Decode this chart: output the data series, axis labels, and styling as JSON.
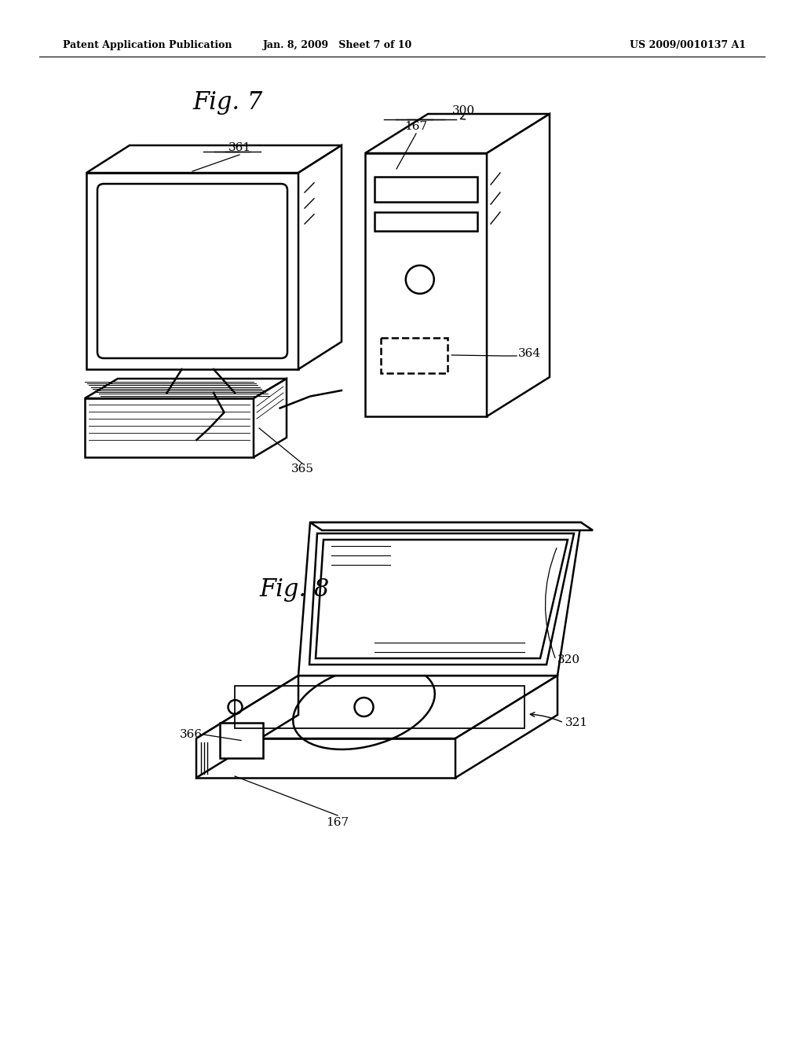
{
  "background_color": "#ffffff",
  "header_left": "Patent Application Publication",
  "header_center": "Jan. 8, 2009   Sheet 7 of 10",
  "header_right": "US 2009/0010137 A1",
  "fig7_title": "Fig. 7",
  "fig8_title": "Fig. 8",
  "line_color": "#000000",
  "line_width": 1.8
}
